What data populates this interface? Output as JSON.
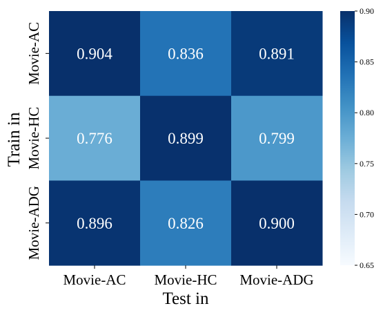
{
  "chart_data": {
    "type": "heatmap",
    "title": "",
    "xlabel": "Test in",
    "ylabel": "Train in",
    "x_categories": [
      "Movie-AC",
      "Movie-HC",
      "Movie-ADG"
    ],
    "y_categories": [
      "Movie-AC",
      "Movie-HC",
      "Movie-ADG"
    ],
    "values": [
      [
        0.904,
        0.836,
        0.891
      ],
      [
        0.776,
        0.899,
        0.799
      ],
      [
        0.896,
        0.826,
        0.9
      ]
    ],
    "value_labels": [
      [
        "0.904",
        "0.836",
        "0.891"
      ],
      [
        "0.776",
        "0.899",
        "0.799"
      ],
      [
        "0.896",
        "0.826",
        "0.900"
      ]
    ],
    "colorbar": {
      "min": 0.65,
      "max": 0.9,
      "ticks": [
        "0.65",
        "0.70",
        "0.75",
        "0.80",
        "0.85",
        "0.90"
      ],
      "colormap": "Blues"
    },
    "colors": {
      "low": "#f7fbff",
      "high": "#08306b",
      "annotation_text": "#ffffff"
    }
  }
}
